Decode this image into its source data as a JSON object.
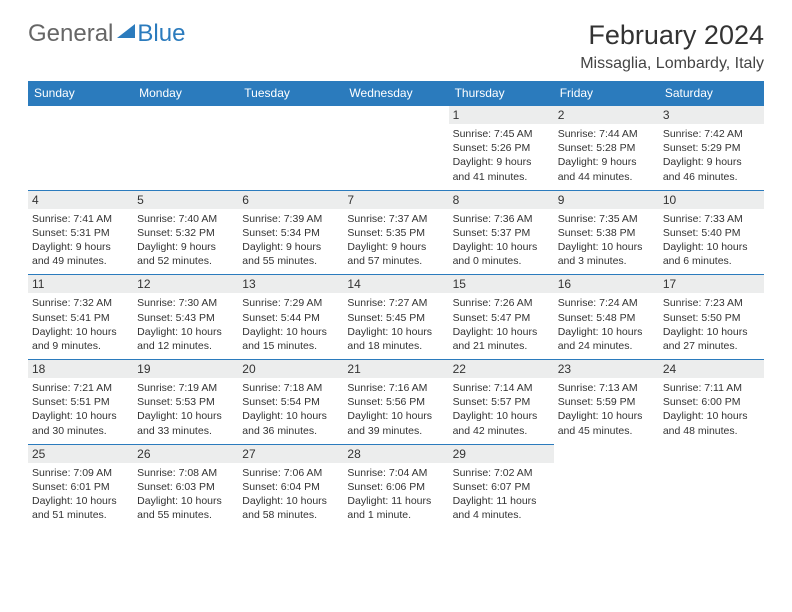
{
  "logo": {
    "text1": "General",
    "text2": "Blue"
  },
  "title": "February 2024",
  "location": "Missaglia, Lombardy, Italy",
  "header_bg": "#2b7bbd",
  "grid_line": "#2b7bbd",
  "daynum_bg": "#eceded",
  "days_of_week": [
    "Sunday",
    "Monday",
    "Tuesday",
    "Wednesday",
    "Thursday",
    "Friday",
    "Saturday"
  ],
  "weeks": [
    [
      null,
      null,
      null,
      null,
      {
        "n": "1",
        "sunrise": "7:45 AM",
        "sunset": "5:26 PM",
        "dl": "9 hours and 41 minutes."
      },
      {
        "n": "2",
        "sunrise": "7:44 AM",
        "sunset": "5:28 PM",
        "dl": "9 hours and 44 minutes."
      },
      {
        "n": "3",
        "sunrise": "7:42 AM",
        "sunset": "5:29 PM",
        "dl": "9 hours and 46 minutes."
      }
    ],
    [
      {
        "n": "4",
        "sunrise": "7:41 AM",
        "sunset": "5:31 PM",
        "dl": "9 hours and 49 minutes."
      },
      {
        "n": "5",
        "sunrise": "7:40 AM",
        "sunset": "5:32 PM",
        "dl": "9 hours and 52 minutes."
      },
      {
        "n": "6",
        "sunrise": "7:39 AM",
        "sunset": "5:34 PM",
        "dl": "9 hours and 55 minutes."
      },
      {
        "n": "7",
        "sunrise": "7:37 AM",
        "sunset": "5:35 PM",
        "dl": "9 hours and 57 minutes."
      },
      {
        "n": "8",
        "sunrise": "7:36 AM",
        "sunset": "5:37 PM",
        "dl": "10 hours and 0 minutes."
      },
      {
        "n": "9",
        "sunrise": "7:35 AM",
        "sunset": "5:38 PM",
        "dl": "10 hours and 3 minutes."
      },
      {
        "n": "10",
        "sunrise": "7:33 AM",
        "sunset": "5:40 PM",
        "dl": "10 hours and 6 minutes."
      }
    ],
    [
      {
        "n": "11",
        "sunrise": "7:32 AM",
        "sunset": "5:41 PM",
        "dl": "10 hours and 9 minutes."
      },
      {
        "n": "12",
        "sunrise": "7:30 AM",
        "sunset": "5:43 PM",
        "dl": "10 hours and 12 minutes."
      },
      {
        "n": "13",
        "sunrise": "7:29 AM",
        "sunset": "5:44 PM",
        "dl": "10 hours and 15 minutes."
      },
      {
        "n": "14",
        "sunrise": "7:27 AM",
        "sunset": "5:45 PM",
        "dl": "10 hours and 18 minutes."
      },
      {
        "n": "15",
        "sunrise": "7:26 AM",
        "sunset": "5:47 PM",
        "dl": "10 hours and 21 minutes."
      },
      {
        "n": "16",
        "sunrise": "7:24 AM",
        "sunset": "5:48 PM",
        "dl": "10 hours and 24 minutes."
      },
      {
        "n": "17",
        "sunrise": "7:23 AM",
        "sunset": "5:50 PM",
        "dl": "10 hours and 27 minutes."
      }
    ],
    [
      {
        "n": "18",
        "sunrise": "7:21 AM",
        "sunset": "5:51 PM",
        "dl": "10 hours and 30 minutes."
      },
      {
        "n": "19",
        "sunrise": "7:19 AM",
        "sunset": "5:53 PM",
        "dl": "10 hours and 33 minutes."
      },
      {
        "n": "20",
        "sunrise": "7:18 AM",
        "sunset": "5:54 PM",
        "dl": "10 hours and 36 minutes."
      },
      {
        "n": "21",
        "sunrise": "7:16 AM",
        "sunset": "5:56 PM",
        "dl": "10 hours and 39 minutes."
      },
      {
        "n": "22",
        "sunrise": "7:14 AM",
        "sunset": "5:57 PM",
        "dl": "10 hours and 42 minutes."
      },
      {
        "n": "23",
        "sunrise": "7:13 AM",
        "sunset": "5:59 PM",
        "dl": "10 hours and 45 minutes."
      },
      {
        "n": "24",
        "sunrise": "7:11 AM",
        "sunset": "6:00 PM",
        "dl": "10 hours and 48 minutes."
      }
    ],
    [
      {
        "n": "25",
        "sunrise": "7:09 AM",
        "sunset": "6:01 PM",
        "dl": "10 hours and 51 minutes."
      },
      {
        "n": "26",
        "sunrise": "7:08 AM",
        "sunset": "6:03 PM",
        "dl": "10 hours and 55 minutes."
      },
      {
        "n": "27",
        "sunrise": "7:06 AM",
        "sunset": "6:04 PM",
        "dl": "10 hours and 58 minutes."
      },
      {
        "n": "28",
        "sunrise": "7:04 AM",
        "sunset": "6:06 PM",
        "dl": "11 hours and 1 minute."
      },
      {
        "n": "29",
        "sunrise": "7:02 AM",
        "sunset": "6:07 PM",
        "dl": "11 hours and 4 minutes."
      },
      null,
      null
    ]
  ],
  "labels": {
    "sunrise": "Sunrise:",
    "sunset": "Sunset:",
    "daylight": "Daylight:"
  }
}
